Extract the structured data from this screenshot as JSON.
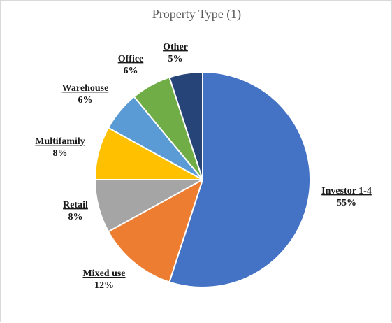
{
  "chart_data": {
    "type": "pie",
    "title": "Property Type (1)",
    "slices": [
      {
        "label": "Investor 1-4",
        "value": 55,
        "display": "55%",
        "color": "#4472C4"
      },
      {
        "label": "Mixed use",
        "value": 12,
        "display": "12%",
        "color": "#ED7D31"
      },
      {
        "label": "Retail",
        "value": 8,
        "display": "8%",
        "color": "#A5A5A5"
      },
      {
        "label": "Multifamily",
        "value": 8,
        "display": "8%",
        "color": "#FFC000"
      },
      {
        "label": "Warehouse",
        "value": 6,
        "display": "6%",
        "color": "#5B9BD5"
      },
      {
        "label": "Office",
        "value": 6,
        "display": "6%",
        "color": "#70AD47"
      },
      {
        "label": "Other",
        "value": 5,
        "display": "5%",
        "color": "#264478"
      }
    ],
    "start": "12 o'clock",
    "direction": "clockwise",
    "legend": "none",
    "data_labels": "outside"
  }
}
